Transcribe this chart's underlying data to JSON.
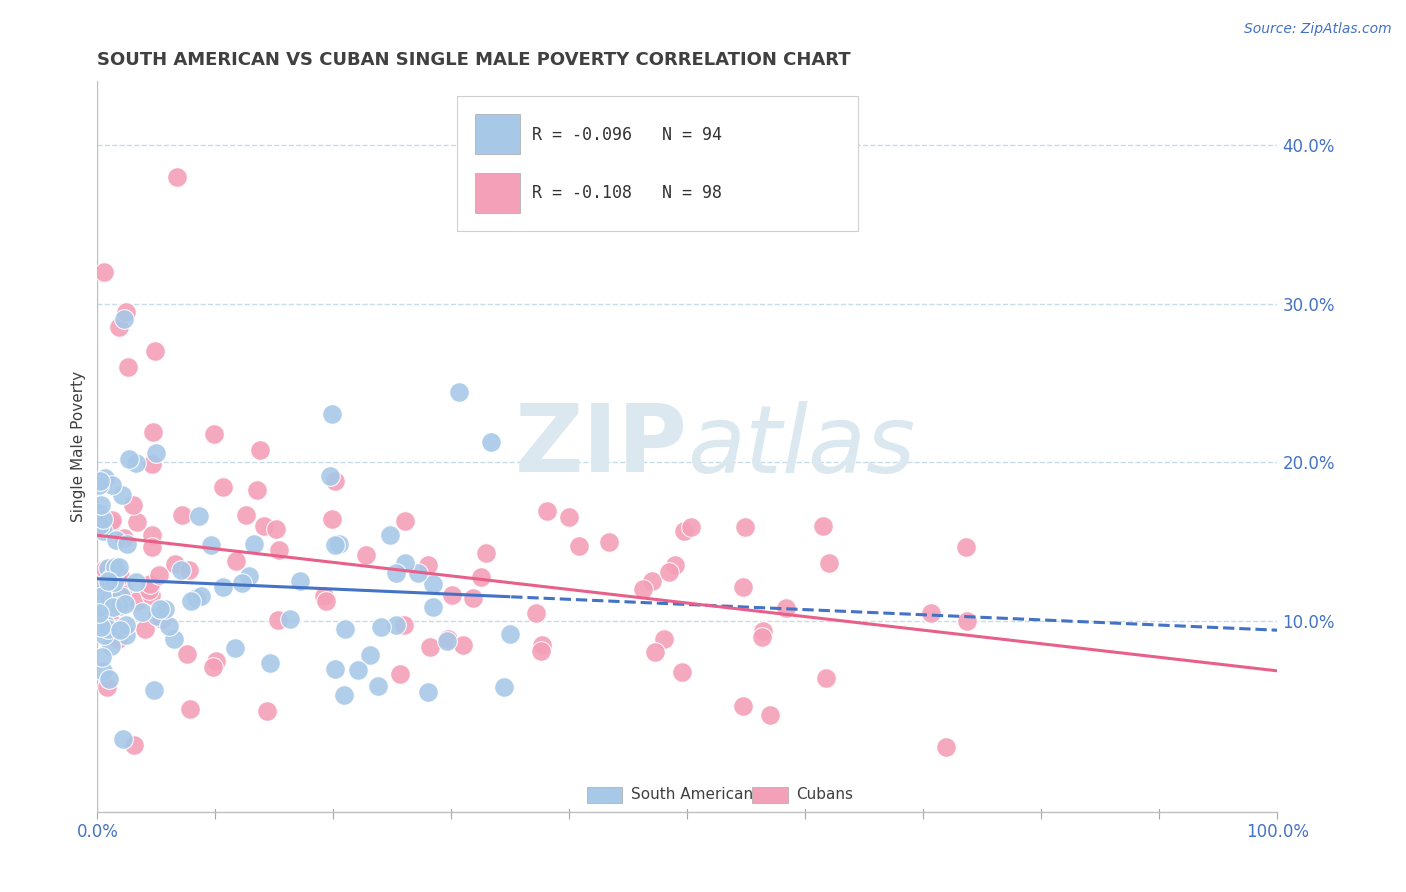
{
  "title": "SOUTH AMERICAN VS CUBAN SINGLE MALE POVERTY CORRELATION CHART",
  "source_text": "Source: ZipAtlas.com",
  "ylabel": "Single Male Poverty",
  "xlim": [
    0.0,
    1.0
  ],
  "ylim": [
    -0.02,
    0.44
  ],
  "yticks": [
    0.1,
    0.2,
    0.3,
    0.4
  ],
  "ytick_labels_right": [
    "10.0%",
    "20.0%",
    "30.0%",
    "40.0%"
  ],
  "xtick_positions": [
    0.0,
    0.1,
    0.2,
    0.3,
    0.4,
    0.5,
    0.6,
    0.7,
    0.8,
    0.9,
    1.0
  ],
  "xtick_labels": [
    "0.0%",
    "",
    "",
    "",
    "",
    "",
    "",
    "",
    "",
    "",
    "100.0%"
  ],
  "legend1_label": "R = -0.096   N = 94",
  "legend2_label": "R = -0.108   N = 98",
  "legend_bottom_label1": "South Americans",
  "legend_bottom_label2": "Cubans",
  "blue_color": "#a8c8e8",
  "pink_color": "#f4a0b8",
  "blue_line_color": "#4472c4",
  "pink_line_color": "#e8608a",
  "title_color": "#404040",
  "grid_color": "#c8dce8",
  "background_color": "#ffffff",
  "watermark_color": "#dce8f0",
  "sa_seed": 12,
  "cu_seed": 37,
  "sa_n": 94,
  "cu_n": 98
}
